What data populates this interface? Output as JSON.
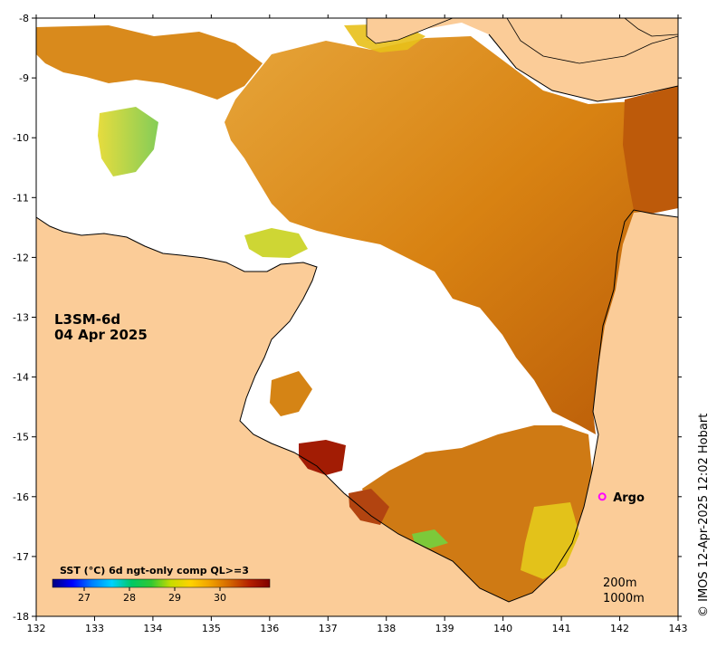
{
  "map": {
    "product": "L3SM-6d",
    "date": "04 Apr 2025",
    "credit": "© IMOS 12-Apr-2025 12:02 Hobart",
    "x_axis": {
      "min": 132,
      "max": 143,
      "ticks": [
        "132",
        "133",
        "134",
        "135",
        "136",
        "137",
        "138",
        "139",
        "140",
        "141",
        "142",
        "143"
      ]
    },
    "y_axis": {
      "min": -18,
      "max": -8,
      "ticks": [
        "-8",
        "-9",
        "-10",
        "-11",
        "-12",
        "-13",
        "-14",
        "-15",
        "-16",
        "-17",
        "-18"
      ]
    },
    "colorbar": {
      "title": "SST (°C) 6d ngt-only comp QL>=3",
      "min": 26.3,
      "max": 31.1,
      "ticks": [
        "27",
        "28",
        "29",
        "30"
      ],
      "colors": [
        "#00007f",
        "#0000ff",
        "#007fff",
        "#00d2ff",
        "#00c864",
        "#32c832",
        "#c8dc00",
        "#ffd200",
        "#f0a000",
        "#d26400",
        "#b41e00",
        "#7f0000"
      ]
    },
    "markers": [
      {
        "label": "Argo",
        "lon": 141.7,
        "lat": -16.0
      }
    ],
    "depth_contours": [
      "200m",
      "1000m"
    ],
    "colors": {
      "land": "#fbcc98",
      "ocean_nodata": "#ffffff",
      "sst_warm": "#dd8a10",
      "argo_marker": "#ff00ff"
    }
  }
}
